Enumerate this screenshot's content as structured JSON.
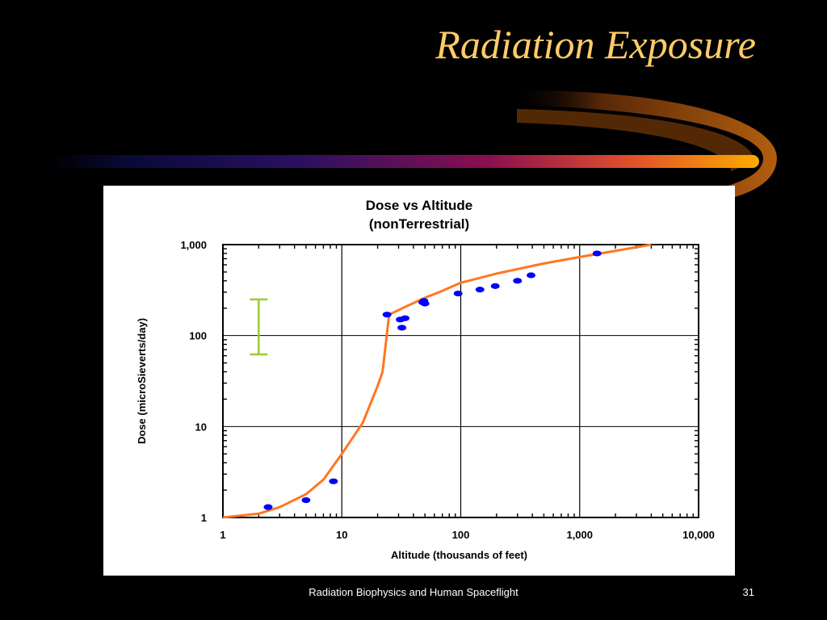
{
  "slide": {
    "title": "Radiation Exposure",
    "footer": "Radiation Biophysics and Human Spaceflight",
    "page_number": "31"
  },
  "colors": {
    "background": "#000000",
    "title": "#ffcc66",
    "curve": "#ff7722",
    "points": "#0000ff",
    "error_bar": "#99cc33"
  },
  "chart_data": {
    "type": "scatter",
    "title_lines": [
      "Dose vs Altitude",
      "(nonTerrestrial)"
    ],
    "xlabel": "Altitude (thousands of feet)",
    "ylabel": "Dose (microSieverts/day)",
    "x_scale": "log",
    "y_scale": "log",
    "xlim": [
      1,
      10000
    ],
    "ylim": [
      1,
      1000
    ],
    "x_ticks": [
      {
        "v": 1,
        "label": "1"
      },
      {
        "v": 10,
        "label": "10"
      },
      {
        "v": 100,
        "label": "100"
      },
      {
        "v": 1000,
        "label": "1,000"
      },
      {
        "v": 10000,
        "label": "10,000"
      }
    ],
    "y_ticks": [
      {
        "v": 1,
        "label": "1"
      },
      {
        "v": 10,
        "label": "10"
      },
      {
        "v": 100,
        "label": "100"
      },
      {
        "v": 1000,
        "label": "1,000"
      }
    ],
    "grid": true,
    "curve": {
      "x": [
        1,
        2,
        3,
        5,
        7,
        10,
        15,
        20,
        22,
        25,
        35,
        50,
        70,
        100,
        200,
        500,
        1000,
        4000
      ],
      "y": [
        1,
        1.1,
        1.3,
        1.8,
        2.6,
        5,
        11,
        28,
        40,
        170,
        210,
        260,
        310,
        380,
        480,
        620,
        730,
        1000
      ]
    },
    "points": [
      {
        "x": 2.4,
        "y": 1.3
      },
      {
        "x": 5,
        "y": 1.55
      },
      {
        "x": 8.5,
        "y": 2.5
      },
      {
        "x": 24,
        "y": 170
      },
      {
        "x": 31,
        "y": 150
      },
      {
        "x": 32,
        "y": 122
      },
      {
        "x": 34,
        "y": 155
      },
      {
        "x": 48,
        "y": 232
      },
      {
        "x": 49,
        "y": 240
      },
      {
        "x": 50,
        "y": 225
      },
      {
        "x": 95,
        "y": 290
      },
      {
        "x": 145,
        "y": 320
      },
      {
        "x": 195,
        "y": 350
      },
      {
        "x": 300,
        "y": 400
      },
      {
        "x": 390,
        "y": 460
      },
      {
        "x": 1400,
        "y": 800
      }
    ],
    "error_bar": {
      "x": 2.0,
      "low": 62,
      "high": 250
    }
  }
}
